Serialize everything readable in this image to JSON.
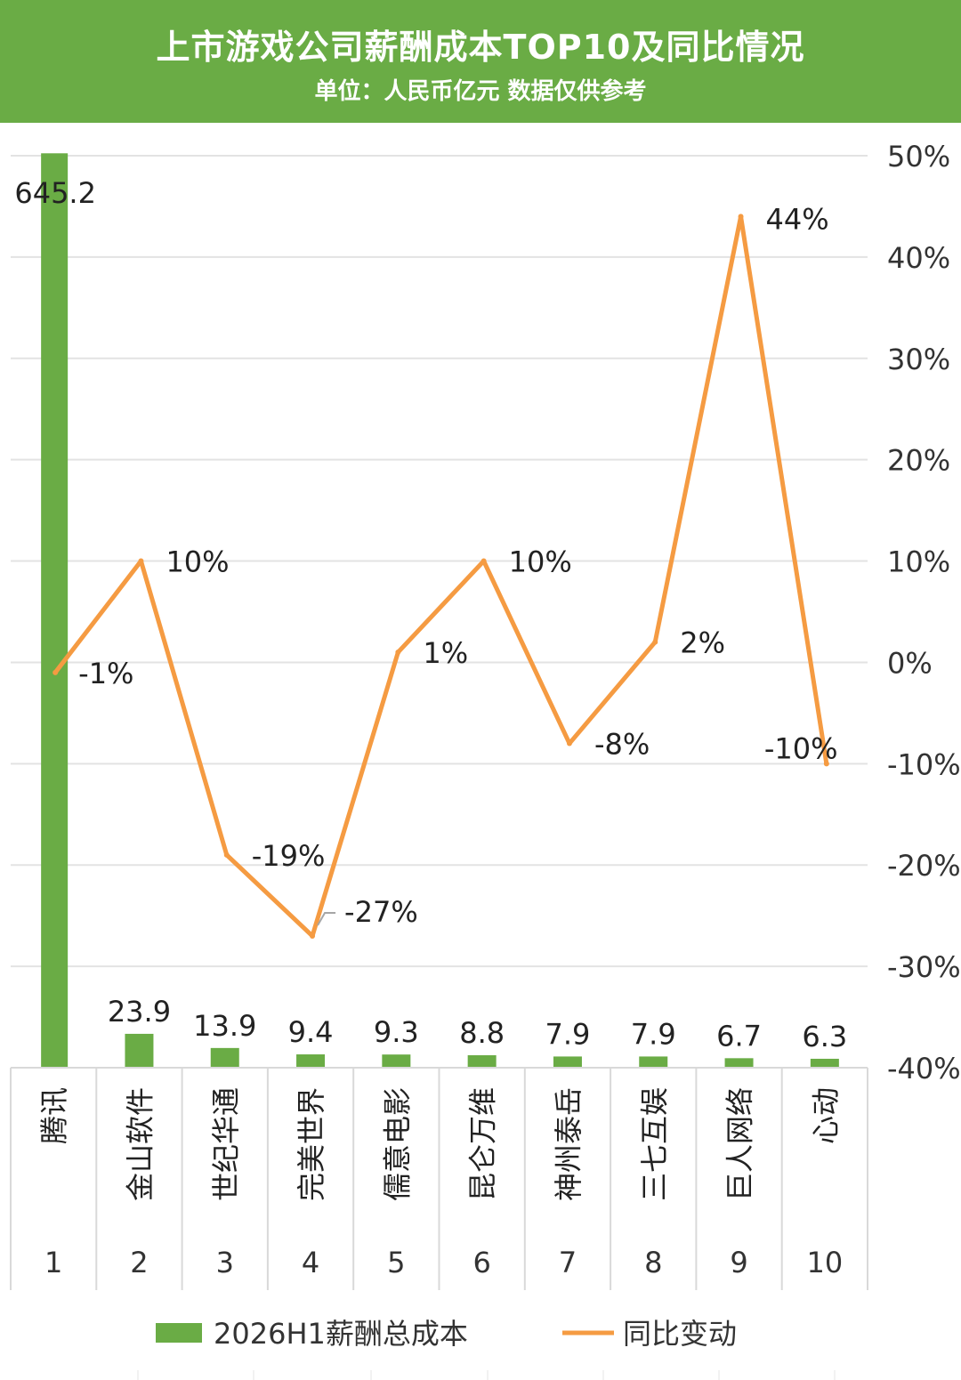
{
  "header": {
    "title": "上市游戏公司薪酬成本TOP10及同比情况",
    "subtitle": "单位：人民币亿元 数据仅供参考"
  },
  "colors": {
    "header_bg": "#6aac45",
    "bar": "#6aac45",
    "line": "#f59b42",
    "grid": "#e3e3e3"
  },
  "chart_data": {
    "type": "bar+line",
    "categories": [
      "腾讯",
      "金山软件",
      "世纪华通",
      "完美世界",
      "儒意电影",
      "昆仑万维",
      "神州泰岳",
      "三七互娱",
      "巨人网络",
      "心动"
    ],
    "ranks": [
      "1",
      "2",
      "3",
      "4",
      "5",
      "6",
      "7",
      "8",
      "9",
      "10"
    ],
    "series": [
      {
        "name": "2026H1薪酬总成本",
        "type": "bar",
        "values": [
          645.2,
          23.9,
          13.9,
          9.4,
          9.3,
          8.8,
          7.9,
          7.9,
          6.7,
          6.3
        ],
        "labels": [
          "645.2",
          "23.9",
          "13.9",
          "9.4",
          "9.3",
          "8.8",
          "7.9",
          "7.9",
          "6.7",
          "6.3"
        ]
      },
      {
        "name": "同比变动",
        "type": "line",
        "axis": "right",
        "values": [
          -1,
          10,
          -19,
          -27,
          1,
          10,
          -8,
          2,
          44,
          -10
        ],
        "labels": [
          "-1%",
          "10%",
          "-19%",
          "-27%",
          "1%",
          "10%",
          "-8%",
          "2%",
          "44%",
          "-10%"
        ]
      }
    ],
    "right_axis": {
      "ticks": [
        "50%",
        "40%",
        "30%",
        "20%",
        "10%",
        "0%",
        "-10%",
        "-20%",
        "-30%",
        "-40%"
      ],
      "range": [
        -40,
        50
      ]
    },
    "left_axis": {
      "range": [
        0,
        700
      ]
    },
    "legend": [
      "2026H1薪酬总成本",
      "同比变动"
    ],
    "legend_position": "bottom",
    "grid": true
  }
}
